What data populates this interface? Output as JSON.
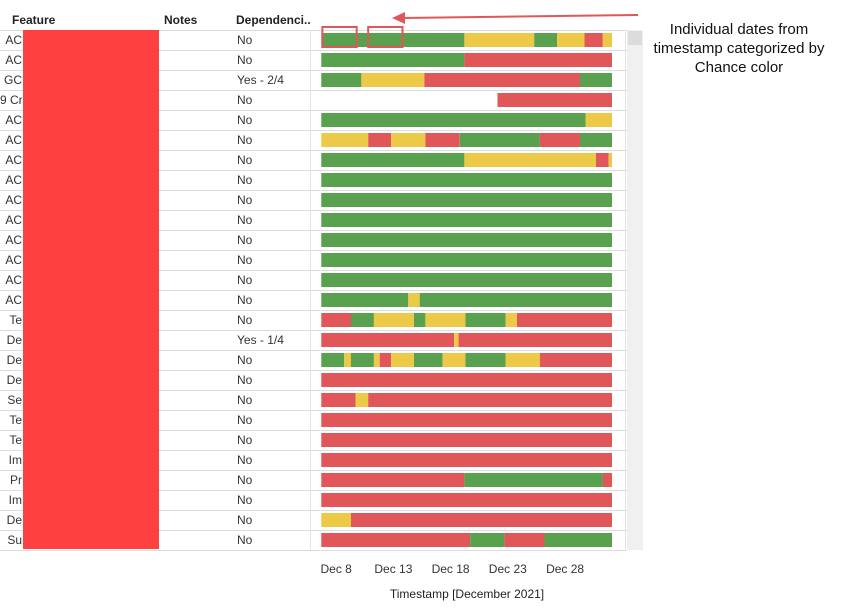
{
  "headers": {
    "feature": "Feature",
    "notes": "Notes",
    "dependencies": "Dependenci.."
  },
  "annotation": "Individual dates from timestamp categorized by Chance color",
  "colors": {
    "green": "#59a14f",
    "yellow": "#edc948",
    "red": "#e15759",
    "highlight": "#e15759"
  },
  "rows": [
    {
      "feature": "AC",
      "dep": "No"
    },
    {
      "feature": "AC",
      "dep": "No"
    },
    {
      "feature": "GC",
      "dep": "Yes - 2/4"
    },
    {
      "feature": "9 Cr",
      "dep": "No"
    },
    {
      "feature": "AC",
      "dep": "No"
    },
    {
      "feature": "AC",
      "dep": "No"
    },
    {
      "feature": "AC",
      "dep": "No"
    },
    {
      "feature": "AC",
      "dep": "No"
    },
    {
      "feature": "AC",
      "dep": "No"
    },
    {
      "feature": "AC",
      "dep": "No"
    },
    {
      "feature": "AC",
      "dep": "No"
    },
    {
      "feature": "AC",
      "dep": "No"
    },
    {
      "feature": "AC",
      "dep": "No"
    },
    {
      "feature": "AC",
      "dep": "No"
    },
    {
      "feature": "Te",
      "dep": "No"
    },
    {
      "feature": "De",
      "dep": "Yes - 1/4"
    },
    {
      "feature": "De",
      "dep": "No"
    },
    {
      "feature": "De",
      "dep": "No"
    },
    {
      "feature": "Se",
      "dep": "No"
    },
    {
      "feature": "Te",
      "dep": "No"
    },
    {
      "feature": "Te",
      "dep": "No"
    },
    {
      "feature": "Im",
      "dep": "No"
    },
    {
      "feature": "Pr",
      "dep": "No"
    },
    {
      "feature": "Im",
      "dep": "No"
    },
    {
      "feature": "De",
      "dep": "No"
    },
    {
      "feature": "Su",
      "dep": "No"
    }
  ],
  "chart_data": {
    "type": "bar",
    "subtype": "timeline-gantt",
    "xlabel": "Timestamp [December 2021]",
    "x_ticks": [
      "Dec 8",
      "Dec 13",
      "Dec 18",
      "Dec 23",
      "Dec 28"
    ],
    "x_tick_values": [
      8,
      13,
      18,
      23,
      28
    ],
    "xlim": [
      6.5,
      32.1
    ],
    "color_legend": {
      "G": "green",
      "Y": "yellow",
      "R": "red"
    },
    "series": [
      {
        "row": 1,
        "segments": [
          [
            6.7,
            19.2,
            "G"
          ],
          [
            19.2,
            25.3,
            "Y"
          ],
          [
            25.3,
            27.3,
            "G"
          ],
          [
            27.3,
            29.7,
            "Y"
          ],
          [
            29.7,
            31.3,
            "R"
          ],
          [
            31.3,
            32.1,
            "Y"
          ]
        ]
      },
      {
        "row": 2,
        "segments": [
          [
            6.7,
            19.2,
            "G"
          ],
          [
            19.2,
            32.1,
            "R"
          ]
        ]
      },
      {
        "row": 3,
        "segments": [
          [
            6.7,
            10.2,
            "G"
          ],
          [
            10.2,
            15.7,
            "Y"
          ],
          [
            15.7,
            29.3,
            "R"
          ],
          [
            29.3,
            32.1,
            "G"
          ]
        ]
      },
      {
        "row": 4,
        "segments": [
          [
            22.1,
            32.1,
            "R"
          ]
        ]
      },
      {
        "row": 5,
        "segments": [
          [
            6.7,
            29.8,
            "G"
          ],
          [
            29.8,
            32.1,
            "Y"
          ]
        ]
      },
      {
        "row": 6,
        "segments": [
          [
            6.7,
            10.8,
            "Y"
          ],
          [
            10.8,
            12.8,
            "R"
          ],
          [
            12.8,
            15.8,
            "Y"
          ],
          [
            15.8,
            18.8,
            "R"
          ],
          [
            18.8,
            25.8,
            "G"
          ],
          [
            25.8,
            29.3,
            "R"
          ],
          [
            29.3,
            32.1,
            "G"
          ]
        ]
      },
      {
        "row": 7,
        "segments": [
          [
            6.7,
            19.2,
            "G"
          ],
          [
            19.2,
            30.7,
            "Y"
          ],
          [
            30.7,
            31.8,
            "R"
          ],
          [
            31.8,
            32.1,
            "Y"
          ]
        ]
      },
      {
        "row": 8,
        "segments": [
          [
            6.7,
            32.1,
            "G"
          ]
        ]
      },
      {
        "row": 9,
        "segments": [
          [
            6.7,
            32.1,
            "G"
          ]
        ]
      },
      {
        "row": 10,
        "segments": [
          [
            6.7,
            32.1,
            "G"
          ]
        ]
      },
      {
        "row": 11,
        "segments": [
          [
            6.7,
            32.1,
            "G"
          ]
        ]
      },
      {
        "row": 12,
        "segments": [
          [
            6.7,
            32.1,
            "G"
          ]
        ]
      },
      {
        "row": 13,
        "segments": [
          [
            6.7,
            32.1,
            "G"
          ]
        ]
      },
      {
        "row": 14,
        "segments": [
          [
            6.7,
            14.3,
            "G"
          ],
          [
            14.3,
            15.3,
            "Y"
          ],
          [
            15.3,
            32.1,
            "G"
          ]
        ]
      },
      {
        "row": 15,
        "segments": [
          [
            6.7,
            9.3,
            "R"
          ],
          [
            9.3,
            11.3,
            "G"
          ],
          [
            11.3,
            14.8,
            "Y"
          ],
          [
            14.8,
            15.8,
            "G"
          ],
          [
            15.8,
            19.3,
            "Y"
          ],
          [
            19.3,
            22.8,
            "G"
          ],
          [
            22.8,
            23.8,
            "Y"
          ],
          [
            23.8,
            32.1,
            "R"
          ]
        ]
      },
      {
        "row": 16,
        "segments": [
          [
            6.7,
            18.3,
            "R"
          ],
          [
            18.3,
            18.7,
            "Y"
          ],
          [
            18.7,
            32.1,
            "R"
          ]
        ]
      },
      {
        "row": 17,
        "segments": [
          [
            6.7,
            8.7,
            "G"
          ],
          [
            8.7,
            9.3,
            "Y"
          ],
          [
            9.3,
            11.3,
            "G"
          ],
          [
            11.3,
            11.8,
            "Y"
          ],
          [
            11.8,
            12.8,
            "R"
          ],
          [
            12.8,
            14.8,
            "Y"
          ],
          [
            14.8,
            17.3,
            "G"
          ],
          [
            17.3,
            19.3,
            "Y"
          ],
          [
            19.3,
            22.8,
            "G"
          ],
          [
            22.8,
            25.8,
            "Y"
          ],
          [
            25.8,
            32.1,
            "R"
          ]
        ]
      },
      {
        "row": 18,
        "segments": [
          [
            6.7,
            32.1,
            "R"
          ]
        ]
      },
      {
        "row": 19,
        "segments": [
          [
            6.7,
            9.7,
            "R"
          ],
          [
            9.7,
            10.8,
            "Y"
          ],
          [
            10.8,
            32.1,
            "R"
          ]
        ]
      },
      {
        "row": 20,
        "segments": [
          [
            6.7,
            32.1,
            "R"
          ]
        ]
      },
      {
        "row": 21,
        "segments": [
          [
            6.7,
            32.1,
            "R"
          ]
        ]
      },
      {
        "row": 22,
        "segments": [
          [
            6.7,
            32.1,
            "R"
          ]
        ]
      },
      {
        "row": 23,
        "segments": [
          [
            6.7,
            19.2,
            "R"
          ],
          [
            19.2,
            31.3,
            "G"
          ],
          [
            31.3,
            32.1,
            "R"
          ]
        ]
      },
      {
        "row": 24,
        "segments": [
          [
            6.7,
            32.1,
            "R"
          ]
        ]
      },
      {
        "row": 25,
        "segments": [
          [
            6.7,
            9.3,
            "Y"
          ],
          [
            9.3,
            32.1,
            "R"
          ]
        ]
      },
      {
        "row": 26,
        "segments": [
          [
            6.7,
            19.7,
            "R"
          ],
          [
            19.7,
            22.7,
            "G"
          ],
          [
            22.7,
            26.2,
            "R"
          ],
          [
            26.2,
            32.1,
            "G"
          ]
        ]
      }
    ],
    "highlighted_dates": [
      [
        6.8,
        9.8,
        1
      ],
      [
        10.8,
        13.8,
        1
      ]
    ]
  }
}
